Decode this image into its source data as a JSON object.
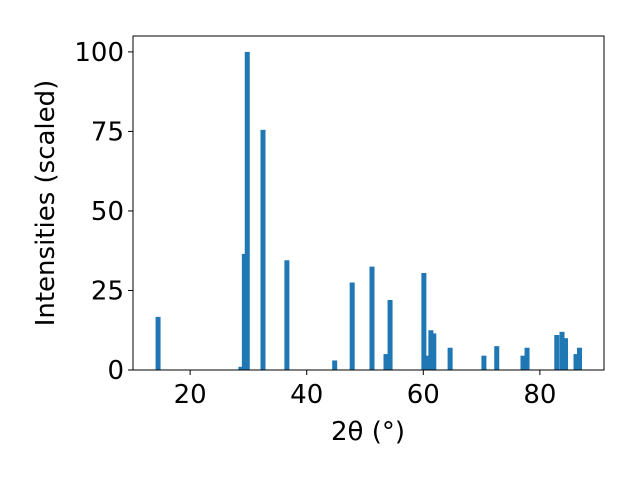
{
  "chart_data": {
    "type": "bar",
    "xlabel": "2θ (°)",
    "ylabel": "Intensities (scaled)",
    "x": [
      14.5,
      28.7,
      29.3,
      29.8,
      32.5,
      36.6,
      44.8,
      47.8,
      51.2,
      53.6,
      54.3,
      60.1,
      60.8,
      61.3,
      61.8,
      64.6,
      70.4,
      72.6,
      77.1,
      77.8,
      82.9,
      83.8,
      84.4,
      86.2,
      86.8
    ],
    "values": [
      16.7,
      1,
      36.5,
      100,
      75.5,
      34.5,
      3,
      27.5,
      32.5,
      5,
      22,
      30.5,
      4.5,
      12.5,
      11.5,
      7,
      4.5,
      7.5,
      4.5,
      7,
      11,
      12,
      10,
      5,
      7
    ],
    "color": "#1f77b4",
    "xlim": [
      10.2,
      91.0
    ],
    "xticks": [
      20,
      40,
      60,
      80
    ],
    "ylim": [
      0,
      105
    ],
    "yticks": [
      0,
      25,
      50,
      75,
      100
    ],
    "grid": false
  }
}
